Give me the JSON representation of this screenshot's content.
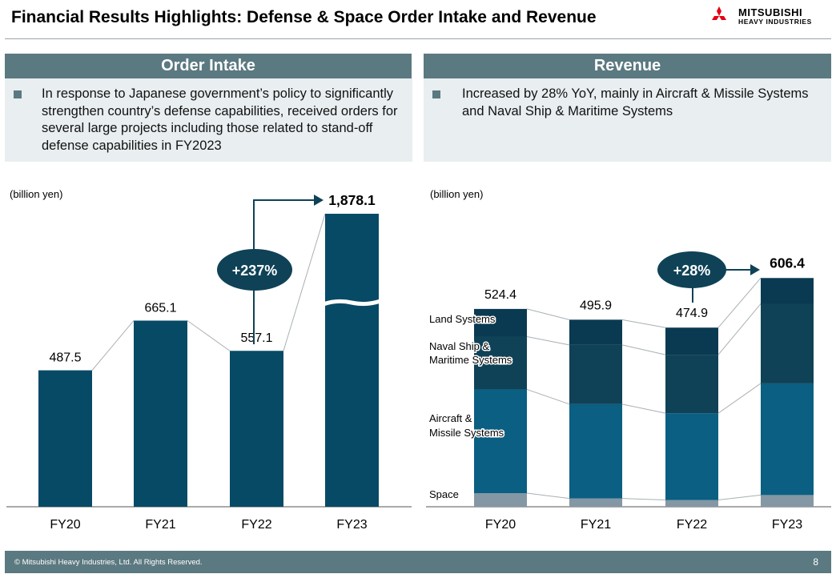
{
  "title": "Financial Results Highlights: Defense & Space Order Intake and Revenue",
  "logo": {
    "line1": "MITSUBISHI",
    "line2": "HEAVY INDUSTRIES"
  },
  "order_panel": {
    "heading": "Order Intake",
    "text": "In response to Japanese government’s policy to significantly strengthen country’s defense capabilities, received orders for several large projects including those related to stand-off defense capabilities in FY2023"
  },
  "revenue_panel": {
    "heading": "Revenue",
    "text": "Increased by 28% YoY, mainly in Aircraft & Missile Systems and Naval Ship & Maritime Systems"
  },
  "footer": {
    "copyright": "© Mitsubishi Heavy Industries, Ltd.  All Rights Reserved.",
    "page": "8"
  },
  "colors": {
    "dark": "#064a66",
    "navy": "#0f4257",
    "teal": "#0a5f82",
    "gray": "#8497a4",
    "accent": "#5b7980"
  },
  "chart_data": [
    {
      "type": "bar",
      "title": "Order Intake",
      "ylabel": "(billion yen)",
      "categories": [
        "FY20",
        "FY21",
        "FY22",
        "FY23"
      ],
      "values": [
        487.5,
        665.1,
        557.1,
        1878.1
      ],
      "labels": [
        "487.5",
        "665.1",
        "557.1",
        "1,878.1"
      ],
      "axis_break": true,
      "annotation": {
        "text": "+237%",
        "from": "FY22",
        "to": "FY23"
      }
    },
    {
      "type": "bar",
      "stacked": true,
      "title": "Revenue",
      "ylabel": "(billion yen)",
      "categories": [
        "FY20",
        "FY21",
        "FY22",
        "FY23"
      ],
      "totals": [
        524.4,
        495.9,
        474.9,
        606.4
      ],
      "labels": [
        "524.4",
        "495.9",
        "474.9",
        "606.4"
      ],
      "series": [
        {
          "name": "Space",
          "values": [
            36,
            22,
            18,
            31
          ]
        },
        {
          "name": "Aircraft & Missile Systems",
          "values": [
            275,
            250,
            230,
            296
          ]
        },
        {
          "name": "Naval Ship & Maritime Systems",
          "values": [
            140,
            157,
            155,
            211
          ]
        },
        {
          "name": "Land Systems",
          "values": [
            73.4,
            66.9,
            71.9,
            68.4
          ]
        }
      ],
      "annotation": {
        "text": "+28%",
        "from": "FY22",
        "to": "FY23"
      }
    }
  ]
}
